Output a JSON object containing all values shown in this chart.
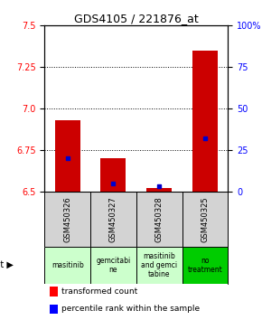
{
  "title": "GDS4105 / 221876_at",
  "samples": [
    "GSM450326",
    "GSM450327",
    "GSM450328",
    "GSM450325"
  ],
  "agents": [
    "masitinib",
    "gemcitabi\nne",
    "masitinib\nand gemci\ntabine",
    "no\ntreatment"
  ],
  "agent_colors": [
    "#ccffcc",
    "#ccffcc",
    "#ccffcc",
    "#00cc00"
  ],
  "transformed_counts": [
    6.93,
    6.7,
    6.52,
    7.35
  ],
  "percentile_ranks": [
    20.0,
    5.0,
    3.0,
    32.0
  ],
  "ymin": 6.5,
  "ymax": 7.5,
  "yticks_left": [
    6.5,
    6.75,
    7.0,
    7.25,
    7.5
  ],
  "yticks_right": [
    0,
    25,
    50,
    75,
    100
  ],
  "bar_color": "#cc0000",
  "percentile_color": "#0000cc",
  "bar_width": 0.55,
  "title_fontsize": 9,
  "tick_fontsize": 7,
  "sample_fontsize": 6,
  "agent_fontsize": 5.5,
  "legend_fontsize": 6.5
}
